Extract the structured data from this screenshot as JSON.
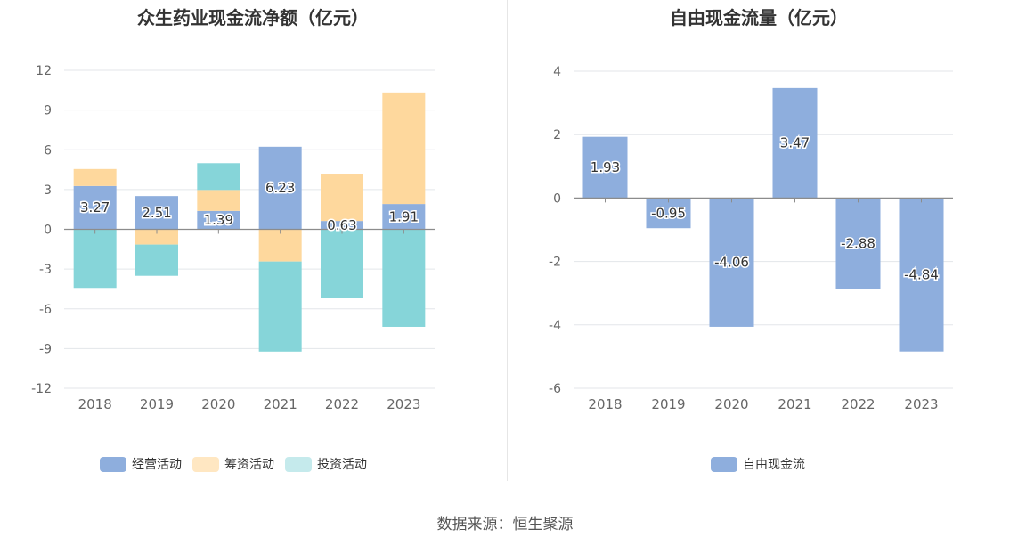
{
  "chart_data": [
    {
      "type": "bar",
      "stacked": true,
      "title": "众生药业现金流净额（亿元）",
      "categories": [
        "2018",
        "2019",
        "2020",
        "2021",
        "2022",
        "2023"
      ],
      "ylim": [
        -12,
        12
      ],
      "yticks": [
        12,
        9,
        6,
        3,
        0,
        -3,
        -6,
        -9,
        -12
      ],
      "grid": true,
      "legend_position": "bottom",
      "series": [
        {
          "name": "经营活动",
          "color": "#8eaedd",
          "values": [
            3.27,
            2.51,
            1.39,
            6.23,
            0.63,
            1.91
          ],
          "labels": [
            "3.27",
            "2.51",
            "1.39",
            "6.23",
            "0.63",
            "1.91"
          ]
        },
        {
          "name": "筹资活动",
          "color": "#fed89d",
          "values": [
            1.28,
            -1.15,
            1.58,
            -2.43,
            3.57,
            8.42
          ]
        },
        {
          "name": "投资活动",
          "color": "#86d5d9",
          "values": [
            -4.42,
            -2.36,
            2.02,
            -6.8,
            -5.21,
            -7.36
          ]
        }
      ]
    },
    {
      "type": "bar",
      "title": "自由现金流量（亿元）",
      "categories": [
        "2018",
        "2019",
        "2020",
        "2021",
        "2022",
        "2023"
      ],
      "ylim": [
        -6,
        4
      ],
      "yticks": [
        4,
        2,
        0,
        -2,
        -4,
        -6
      ],
      "grid": true,
      "legend_position": "bottom",
      "series": [
        {
          "name": "自由现金流",
          "color": "#8eaedd",
          "values": [
            1.93,
            -0.95,
            -4.06,
            3.47,
            -2.88,
            -4.84
          ],
          "labels": [
            "1.93",
            "-0.95",
            "-4.06",
            "3.47",
            "-2.88",
            "-4.84"
          ]
        }
      ]
    }
  ],
  "legend_colors": {
    "operating": "#8eaedd",
    "financing": "#ffe7c2",
    "investing": "#c5eaec",
    "free": "#8eaedd"
  },
  "source": "数据来源：恒生聚源"
}
